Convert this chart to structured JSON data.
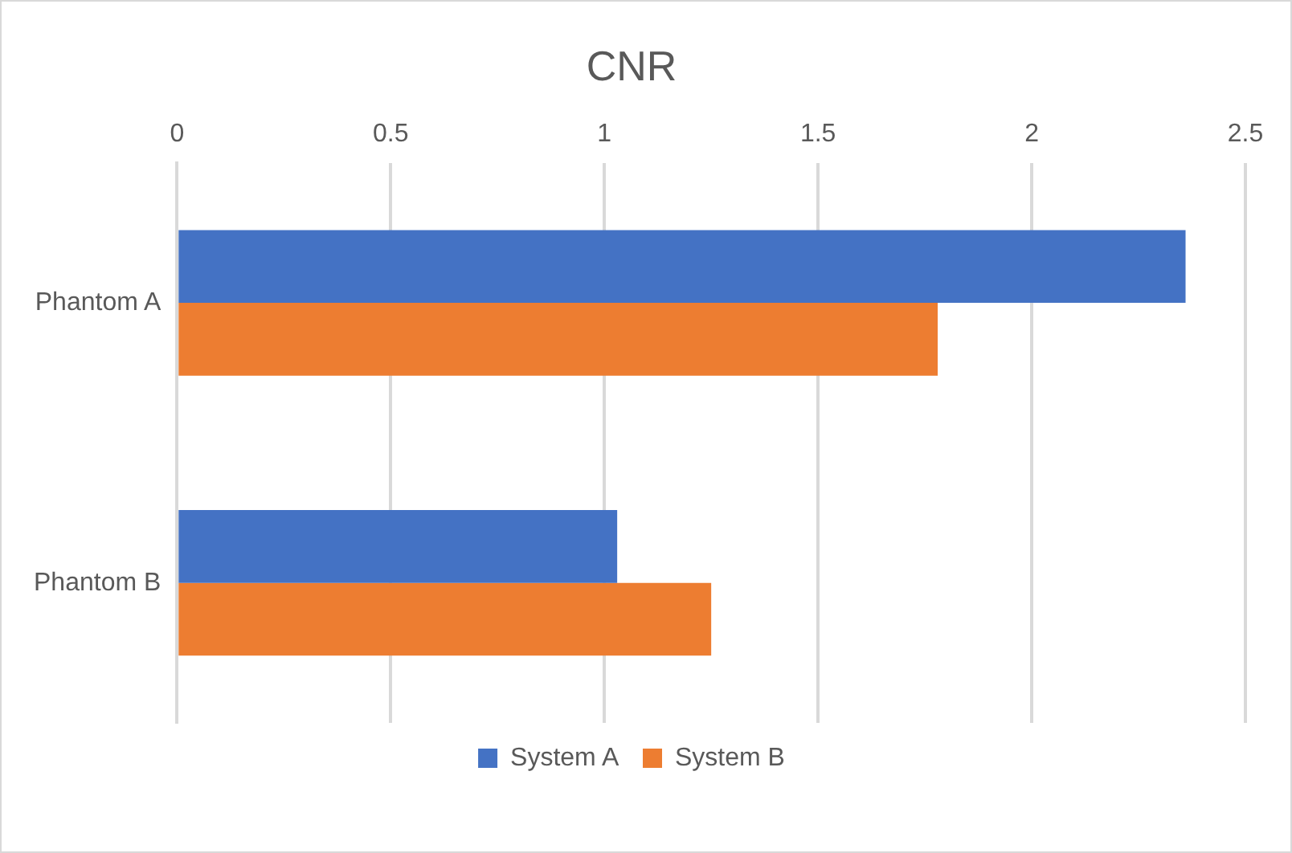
{
  "chart_data": {
    "type": "bar",
    "orientation": "horizontal",
    "title": "CNR",
    "categories": [
      "Phantom A",
      "Phantom B"
    ],
    "series": [
      {
        "name": "System A",
        "color": "#4472c4",
        "values": [
          2.36,
          1.03
        ]
      },
      {
        "name": "System B",
        "color": "#ed7d31",
        "values": [
          1.78,
          1.25
        ]
      }
    ],
    "xlim": [
      0,
      2.5
    ],
    "xticks": [
      0,
      0.5,
      1,
      1.5,
      2,
      2.5
    ],
    "grid": "x",
    "legend": "bottom"
  }
}
